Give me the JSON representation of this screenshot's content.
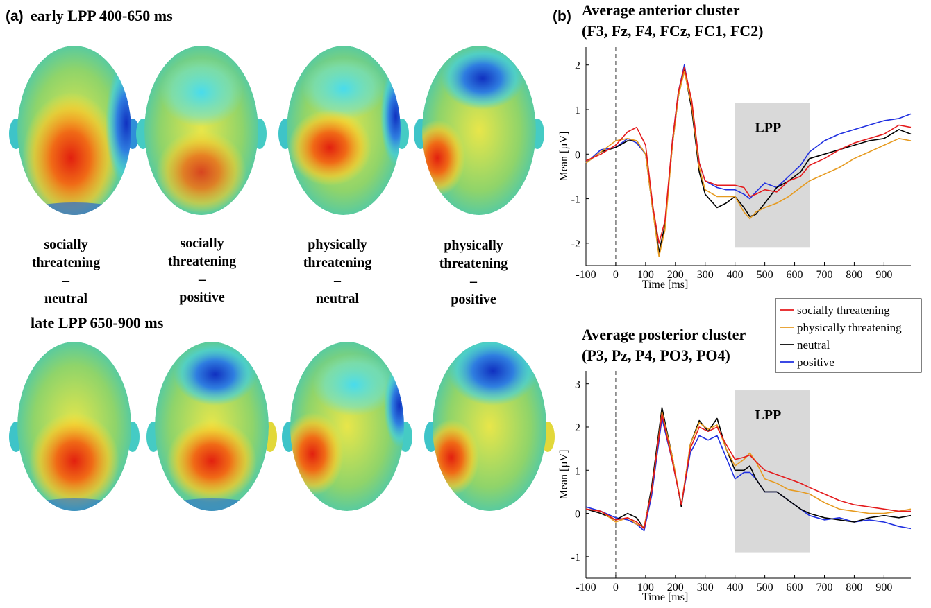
{
  "panel_a": {
    "letter": "(a)",
    "early_title": "early LPP 400-650 ms",
    "late_title": "late LPP 650-900 ms",
    "conditions": [
      {
        "line1": "socially",
        "line2": "threatening",
        "dash": "–",
        "line3": "neutral"
      },
      {
        "line1": "socially",
        "line2": "threatening",
        "dash": "–",
        "line3": "positive"
      },
      {
        "line1": "physically",
        "line2": "threatening",
        "dash": "–",
        "line3": "neutral"
      },
      {
        "line1": "physically",
        "line2": "threatening",
        "dash": "–",
        "line3": "positive"
      }
    ]
  },
  "panel_b": {
    "letter": "(b)",
    "legend": {
      "placement": "between-charts-right",
      "entries": [
        {
          "name": "socially threatening",
          "color": "#e41a1c"
        },
        {
          "name": "physically threatening",
          "color": "#e69a1f"
        },
        {
          "name": "neutral",
          "color": "#000000"
        },
        {
          "name": "positive",
          "color": "#1f2fe0"
        }
      ]
    }
  },
  "chart_data": [
    {
      "type": "line",
      "title": "Average anterior cluster",
      "subtitle": "(F3, Fz, F4, FCz, FC1, FC2)",
      "xlabel": "Time [ms]",
      "ylabel": "Mean [µV]",
      "xlim": [
        -100,
        990
      ],
      "ylim": [
        -2.5,
        2.4
      ],
      "xticks": [
        -100,
        0,
        100,
        200,
        300,
        400,
        500,
        600,
        700,
        800,
        900
      ],
      "yticks": [
        -2,
        -1,
        0,
        1,
        2
      ],
      "grid": false,
      "shaded_window": {
        "label": "LPP",
        "x": [
          400,
          650
        ],
        "y": [
          -2.1,
          1.15
        ]
      },
      "vline_x": 0,
      "x": [
        -100,
        -50,
        0,
        40,
        70,
        100,
        125,
        145,
        165,
        190,
        210,
        230,
        255,
        280,
        300,
        340,
        370,
        400,
        430,
        450,
        470,
        500,
        540,
        580,
        620,
        650,
        700,
        750,
        800,
        850,
        900,
        950,
        990
      ],
      "series": [
        {
          "name": "socially threatening",
          "color": "#e41a1c",
          "values": [
            -0.15,
            0.0,
            0.2,
            0.5,
            0.6,
            0.2,
            -1.2,
            -2.0,
            -1.5,
            0.3,
            1.4,
            1.95,
            1.2,
            -0.2,
            -0.6,
            -0.7,
            -0.7,
            -0.7,
            -0.75,
            -0.95,
            -0.9,
            -0.8,
            -0.85,
            -0.6,
            -0.5,
            -0.25,
            -0.1,
            0.1,
            0.25,
            0.35,
            0.45,
            0.65,
            0.6
          ]
        },
        {
          "name": "physically threatening",
          "color": "#e69a1f",
          "values": [
            -0.2,
            0.05,
            0.3,
            0.35,
            0.3,
            0.0,
            -1.3,
            -2.3,
            -1.7,
            0.2,
            1.3,
            1.85,
            1.1,
            -0.3,
            -0.8,
            -0.95,
            -0.95,
            -0.95,
            -1.3,
            -1.45,
            -1.3,
            -1.2,
            -1.1,
            -0.95,
            -0.75,
            -0.6,
            -0.45,
            -0.3,
            -0.1,
            0.05,
            0.2,
            0.35,
            0.3
          ]
        },
        {
          "name": "neutral",
          "color": "#000000",
          "values": [
            -0.2,
            0.05,
            0.15,
            0.3,
            0.3,
            0.0,
            -1.3,
            -2.2,
            -1.6,
            0.2,
            1.3,
            1.9,
            1.0,
            -0.4,
            -0.9,
            -1.2,
            -1.1,
            -0.95,
            -1.2,
            -1.4,
            -1.35,
            -1.1,
            -0.75,
            -0.6,
            -0.4,
            -0.1,
            0.0,
            0.1,
            0.2,
            0.3,
            0.35,
            0.55,
            0.45
          ]
        },
        {
          "name": "positive",
          "color": "#1f2fe0",
          "values": [
            -0.2,
            0.1,
            0.15,
            0.35,
            0.25,
            0.0,
            -1.2,
            -2.25,
            -1.6,
            0.3,
            1.4,
            2.0,
            1.1,
            -0.2,
            -0.6,
            -0.75,
            -0.8,
            -0.8,
            -0.9,
            -1.0,
            -0.85,
            -0.65,
            -0.75,
            -0.5,
            -0.25,
            0.05,
            0.3,
            0.45,
            0.55,
            0.65,
            0.75,
            0.8,
            0.9
          ]
        }
      ]
    },
    {
      "type": "line",
      "title": "Average posterior cluster",
      "subtitle": "(P3, Pz, P4, PO3, PO4)",
      "xlabel": "Time [ms]",
      "ylabel": "Mean [µV]",
      "xlim": [
        -100,
        990
      ],
      "ylim": [
        -1.5,
        3.3
      ],
      "xticks": [
        -100,
        0,
        100,
        200,
        300,
        400,
        500,
        600,
        700,
        800,
        900
      ],
      "yticks": [
        -1,
        0,
        1,
        2,
        3
      ],
      "grid": false,
      "shaded_window": {
        "label": "LPP",
        "x": [
          400,
          650
        ],
        "y": [
          -0.9,
          2.85
        ]
      },
      "vline_x": 0,
      "x": [
        -100,
        -50,
        0,
        40,
        70,
        95,
        120,
        155,
        190,
        220,
        250,
        280,
        310,
        340,
        370,
        400,
        430,
        450,
        470,
        500,
        540,
        580,
        620,
        650,
        700,
        750,
        800,
        850,
        900,
        950,
        990
      ],
      "series": [
        {
          "name": "socially threatening",
          "color": "#e41a1c",
          "values": [
            0.1,
            0.05,
            -0.15,
            -0.1,
            -0.2,
            -0.35,
            0.5,
            2.3,
            1.2,
            0.2,
            1.5,
            2.0,
            1.9,
            2.0,
            1.6,
            1.25,
            1.3,
            1.35,
            1.2,
            1.0,
            0.9,
            0.8,
            0.7,
            0.6,
            0.45,
            0.3,
            0.2,
            0.15,
            0.1,
            0.05,
            0.05
          ]
        },
        {
          "name": "physically threatening",
          "color": "#e69a1f",
          "values": [
            0.1,
            0.05,
            -0.2,
            -0.1,
            -0.25,
            -0.3,
            0.5,
            2.35,
            1.3,
            0.2,
            1.6,
            2.1,
            1.95,
            2.05,
            1.5,
            1.1,
            1.25,
            1.4,
            1.2,
            0.8,
            0.7,
            0.55,
            0.5,
            0.45,
            0.25,
            0.1,
            0.05,
            0.0,
            0.0,
            0.05,
            0.1
          ]
        },
        {
          "name": "neutral",
          "color": "#000000",
          "values": [
            0.1,
            0.0,
            -0.15,
            0.0,
            -0.1,
            -0.35,
            0.6,
            2.45,
            1.3,
            0.15,
            1.6,
            2.15,
            1.9,
            2.2,
            1.5,
            1.0,
            1.0,
            1.1,
            0.8,
            0.5,
            0.5,
            0.3,
            0.1,
            0.0,
            -0.1,
            -0.15,
            -0.2,
            -0.1,
            -0.05,
            -0.1,
            -0.05
          ]
        },
        {
          "name": "positive",
          "color": "#1f2fe0",
          "values": [
            0.15,
            0.05,
            -0.1,
            -0.15,
            -0.25,
            -0.4,
            0.4,
            2.2,
            1.2,
            0.2,
            1.4,
            1.8,
            1.7,
            1.8,
            1.3,
            0.8,
            0.95,
            0.95,
            0.8,
            0.5,
            0.5,
            0.3,
            0.1,
            -0.05,
            -0.15,
            -0.1,
            -0.2,
            -0.15,
            -0.2,
            -0.3,
            -0.35
          ]
        }
      ]
    }
  ]
}
